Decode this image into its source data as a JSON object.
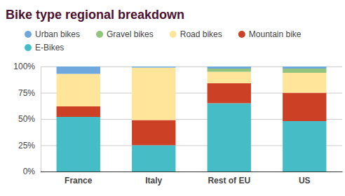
{
  "chart_data": {
    "type": "bar",
    "stacked": true,
    "title": "Bike type regional breakdown",
    "categories": [
      "France",
      "Italy",
      "Rest of EU",
      "US"
    ],
    "series": [
      {
        "name": "E-Bikes",
        "color": "#46bdc6",
        "values": [
          52,
          25,
          65,
          48
        ]
      },
      {
        "name": "Mountain bike",
        "color": "#cc4125",
        "values": [
          10,
          24,
          19,
          27
        ]
      },
      {
        "name": "Road bikes",
        "color": "#ffe599",
        "values": [
          31,
          50,
          11,
          19
        ]
      },
      {
        "name": "Gravel bikes",
        "color": "#93c47d",
        "values": [
          0,
          0,
          3,
          4
        ]
      },
      {
        "name": "Urban bikes",
        "color": "#6fa8dc",
        "values": [
          7,
          1,
          2,
          2
        ]
      }
    ],
    "ylim": [
      0,
      100
    ],
    "yticks": [
      {
        "value": 0,
        "label": "0%"
      },
      {
        "value": 25,
        "label": "25%"
      },
      {
        "value": 50,
        "label": "50%"
      },
      {
        "value": 75,
        "label": "75%"
      },
      {
        "value": 100,
        "label": "100%"
      }
    ],
    "grid": true,
    "legend": "top"
  }
}
